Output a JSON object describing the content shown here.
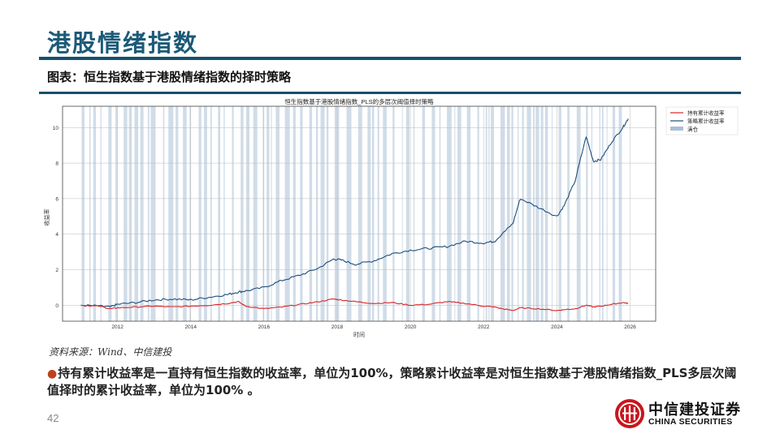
{
  "header": {
    "title": "港股情绪指数",
    "subtitle": "图表：恒生指数基于港股情绪指数的择时策略"
  },
  "footer": {
    "source": "资料来源：Wind、中信建投",
    "note_bullet": "●",
    "note": "持有累计收益率是一直持有恒生指数的收益率，单位为100%，策略累计收益率是对恒生指数基于港股情绪指数_PLS多层次阈值择时的累计收益率，单位为100% 。",
    "page_number": "42",
    "logo_cn": "中信建投证券",
    "logo_en": "CHINA SECURITIES"
  },
  "colors": {
    "brand": "#1c5a78",
    "rule": "#16506a",
    "hold_line": "#d62728",
    "strategy_line": "#1f4e79",
    "position_band": "#a9c0d6",
    "bullet": "#c0401e",
    "logo_red": "#c8161d"
  },
  "chart_data": {
    "type": "line",
    "title": "恒生指数基于港股情绪指数_PLS的多层次阈值择时策略",
    "xlabel": "时间",
    "ylabel": "收益率",
    "xlim": [
      2010.5,
      2026.7
    ],
    "ylim": [
      -0.9,
      11.2
    ],
    "x_ticks": [
      "2012",
      "2014",
      "2016",
      "2018",
      "2020",
      "2022",
      "2024",
      "2026"
    ],
    "y_ticks": [
      "0",
      "2",
      "4",
      "6",
      "8",
      "10"
    ],
    "grid": true,
    "legend_position": "upper right (outside plot)",
    "legend": [
      "持有累计收益率",
      "策略累计收益率",
      "满仓"
    ],
    "x": [
      2011.0,
      2011.5,
      2011.8,
      2012.0,
      2012.5,
      2013.0,
      2013.5,
      2014.0,
      2014.5,
      2015.0,
      2015.3,
      2015.5,
      2016.0,
      2016.5,
      2017.0,
      2017.5,
      2017.9,
      2018.1,
      2018.5,
      2019.0,
      2019.5,
      2020.0,
      2020.5,
      2021.0,
      2021.5,
      2022.0,
      2022.3,
      2022.5,
      2022.8,
      2023.0,
      2023.5,
      2024.0,
      2024.2,
      2024.5,
      2024.8,
      2025.0,
      2025.2,
      2025.5,
      2025.8,
      2025.95
    ],
    "series": [
      {
        "name": "持有累计收益率",
        "values": [
          0.0,
          -0.05,
          -0.2,
          -0.15,
          -0.1,
          -0.05,
          -0.1,
          -0.05,
          0.0,
          0.1,
          0.2,
          -0.05,
          -0.2,
          -0.1,
          0.05,
          0.2,
          0.35,
          0.3,
          0.2,
          0.1,
          0.15,
          0.0,
          0.05,
          0.2,
          0.1,
          -0.05,
          -0.1,
          -0.2,
          -0.3,
          -0.15,
          -0.2,
          -0.3,
          -0.25,
          -0.2,
          0.0,
          -0.1,
          -0.05,
          0.05,
          0.15,
          0.1
        ]
      },
      {
        "name": "策略累计收益率",
        "values": [
          0.0,
          -0.05,
          -0.1,
          0.05,
          0.15,
          0.3,
          0.35,
          0.3,
          0.45,
          0.6,
          0.75,
          0.8,
          1.0,
          1.4,
          1.7,
          2.1,
          2.6,
          2.55,
          2.3,
          2.5,
          2.9,
          3.1,
          3.2,
          3.3,
          3.6,
          3.5,
          3.6,
          4.0,
          4.6,
          6.0,
          5.5,
          5.0,
          5.6,
          7.0,
          9.5,
          8.1,
          8.2,
          9.2,
          10.0,
          10.5
        ]
      }
    ],
    "position_bands_note": "Vertical light-blue shaded spans indicate full-position (满仓) periods throughout 2011–2025"
  }
}
